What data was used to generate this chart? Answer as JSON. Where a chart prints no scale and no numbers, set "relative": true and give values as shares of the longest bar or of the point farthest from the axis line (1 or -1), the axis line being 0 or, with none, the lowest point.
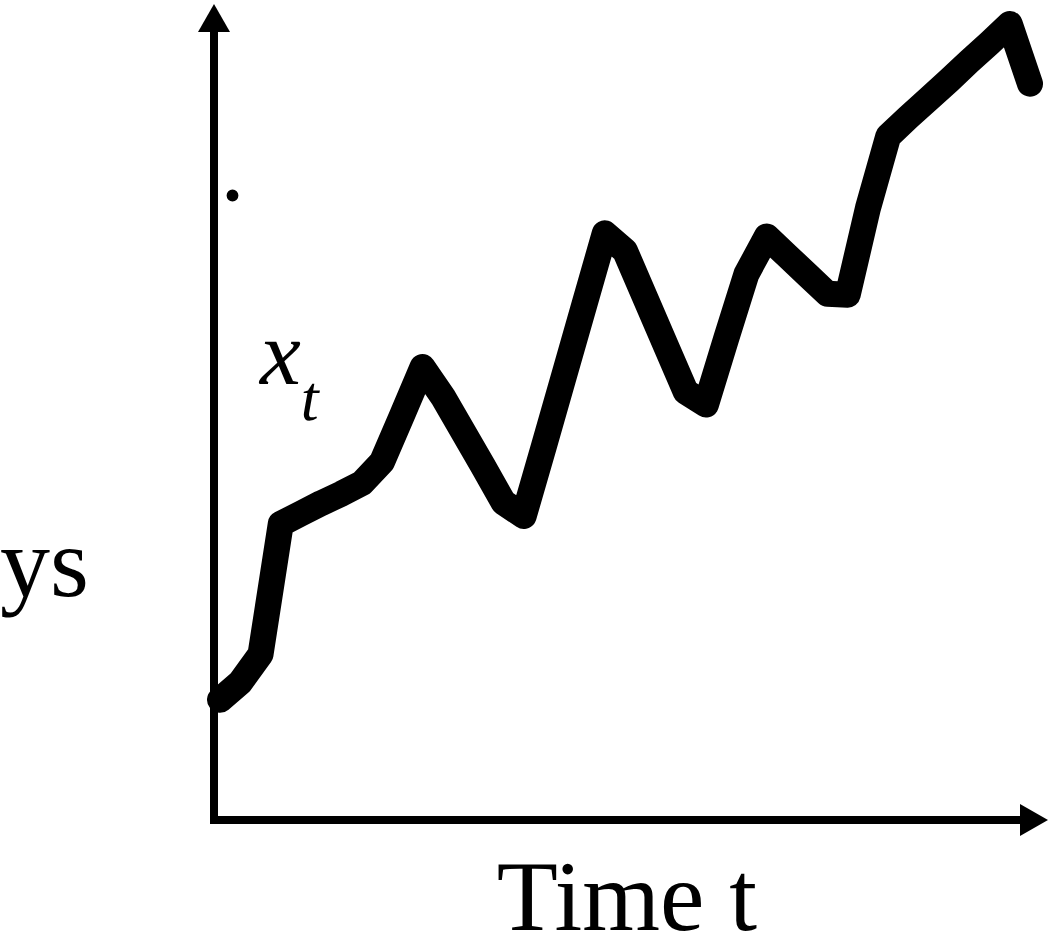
{
  "chart_data": {
    "type": "line",
    "relative": true,
    "xlabel": "Time t",
    "ylabel": "x$_{t}$",
    "annotations": [
      "ys",
      "."
    ],
    "categories": [
      null,
      null,
      null,
      null,
      null,
      null,
      null,
      null,
      null,
      null,
      null,
      null,
      null,
      null,
      null,
      null,
      null,
      null,
      null,
      null,
      null,
      null,
      null,
      null,
      null,
      null,
      null,
      null,
      null,
      null,
      null,
      null,
      null,
      null,
      null,
      null,
      null,
      null,
      null,
      null,
      null
    ],
    "series": [
      {
        "color": "#000000",
        "values": [
          0.151,
          0.173,
          0.208,
          0.372,
          0.385,
          0.398,
          0.41,
          0.423,
          0.45,
          0.509,
          0.569,
          0.532,
          0.488,
          0.444,
          0.399,
          0.382,
          0.47,
          0.559,
          0.648,
          0.737,
          0.715,
          0.656,
          0.597,
          0.538,
          0.522,
          0.605,
          0.686,
          0.733,
          0.709,
          0.685,
          0.661,
          0.66,
          0.769,
          0.859,
          0.883,
          0.906,
          0.929,
          0.953,
          0.976,
          1,
          0.925
        ]
      }
    ]
  }
}
